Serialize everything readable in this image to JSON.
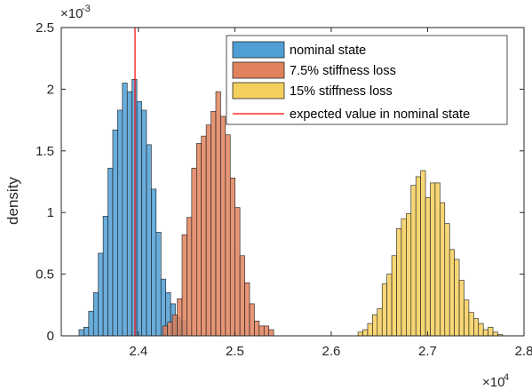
{
  "chart_data": {
    "type": "histogram",
    "ylabel": "density",
    "xlabel": "",
    "x_exponent_label": "×10",
    "x_exponent": "4",
    "y_exponent_label": "×10",
    "y_exponent": "-3",
    "xlim": [
      2.32,
      2.8
    ],
    "ylim": [
      0,
      2.5
    ],
    "x_ticks": [
      "2.4",
      "2.5",
      "2.6",
      "2.7",
      "2.8"
    ],
    "y_ticks": [
      "0",
      "0.5",
      "1",
      "1.5",
      "2",
      "2.5"
    ],
    "legend_position": "top-right",
    "series": [
      {
        "name": "nominal state",
        "color": "#4f9fd6",
        "edges": [
          2.3384,
          2.3434,
          2.3484,
          2.3534,
          2.3584,
          2.3634,
          2.3684,
          2.3734,
          2.3784,
          2.3834,
          2.3884,
          2.3934,
          2.3984,
          2.4034,
          2.4084,
          2.4134,
          2.4184,
          2.4234,
          2.4284,
          2.4334,
          2.4384,
          2.4434,
          2.4484
        ],
        "values": [
          0.05,
          0.07,
          0.2,
          0.35,
          0.67,
          0.97,
          1.36,
          1.67,
          1.83,
          2.05,
          1.98,
          2.08,
          1.9,
          1.83,
          1.55,
          1.19,
          0.84,
          0.46,
          0.35,
          0.26,
          0.15,
          0.12
        ]
      },
      {
        "name": "7.5% stiffness loss",
        "color": "#e0835d",
        "edges": [
          2.4253,
          2.4303,
          2.4353,
          2.4403,
          2.4453,
          2.4503,
          2.4553,
          2.4603,
          2.4653,
          2.4703,
          2.4753,
          2.4803,
          2.4853,
          2.4903,
          2.4953,
          2.5003,
          2.5053,
          2.5103,
          2.5153,
          2.5203,
          2.5253,
          2.5303,
          2.5353,
          2.5403
        ],
        "values": [
          0.08,
          0.11,
          0.17,
          0.3,
          0.82,
          0.96,
          1.36,
          1.56,
          1.62,
          1.71,
          1.82,
          1.98,
          1.78,
          1.63,
          1.28,
          1.04,
          0.65,
          0.43,
          0.26,
          0.12,
          0.08,
          0.08,
          0.05
        ]
      },
      {
        "name": "15% stiffness loss",
        "color": "#f5cf5d",
        "edges": [
          2.6278,
          2.6328,
          2.6378,
          2.6428,
          2.6478,
          2.6528,
          2.6578,
          2.6628,
          2.6678,
          2.6728,
          2.6778,
          2.6828,
          2.6878,
          2.6928,
          2.6978,
          2.7028,
          2.7078,
          2.7128,
          2.7178,
          2.7228,
          2.7278,
          2.7328,
          2.7378,
          2.7428,
          2.7478,
          2.7528,
          2.7578,
          2.7628,
          2.7678,
          2.7728,
          2.7778
        ],
        "values": [
          0.03,
          0.05,
          0.1,
          0.17,
          0.22,
          0.42,
          0.5,
          0.65,
          0.87,
          0.95,
          0.99,
          1.22,
          1.29,
          1.34,
          1.12,
          1.24,
          1.24,
          1.08,
          0.91,
          0.7,
          0.62,
          0.45,
          0.29,
          0.19,
          0.14,
          0.1,
          0.05,
          0.07,
          0.03,
          0.01
        ]
      }
    ],
    "reference_line": {
      "name": "expected value in nominal state",
      "color": "#ff0000",
      "x": 2.3965
    }
  }
}
